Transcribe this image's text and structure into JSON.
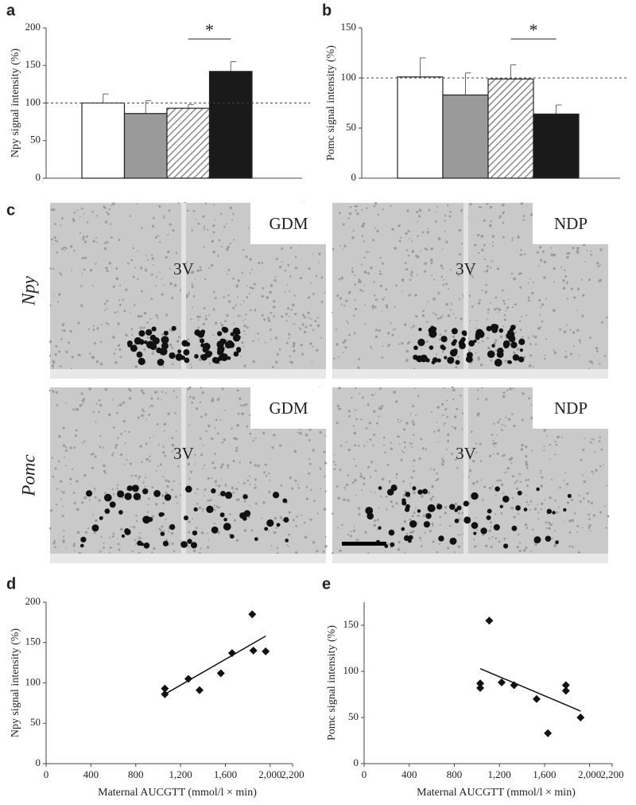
{
  "chart_data": [
    {
      "type": "bar",
      "panel_label": "a",
      "ylabel": "Npy signal intensity (%)",
      "categories": [
        null,
        null,
        null,
        null
      ],
      "values": [
        100,
        86,
        93,
        142
      ],
      "errors": [
        12,
        17,
        5,
        13
      ],
      "fills": [
        "#ffffff",
        "#9a9a9a",
        "#ffffff",
        "#1a1a1a"
      ],
      "hatched": [
        false,
        false,
        true,
        false
      ],
      "ylim": [
        0,
        200
      ],
      "yticks": [
        0,
        50,
        100,
        150,
        200
      ],
      "refline": 100,
      "significance": "*"
    },
    {
      "type": "bar",
      "panel_label": "b",
      "ylabel": "Pomc signal intensity (%)",
      "categories": [
        null,
        null,
        null,
        null
      ],
      "values": [
        101,
        83,
        99,
        64
      ],
      "errors": [
        19,
        22,
        14,
        9
      ],
      "fills": [
        "#ffffff",
        "#9a9a9a",
        "#ffffff",
        "#1a1a1a"
      ],
      "hatched": [
        false,
        false,
        true,
        false
      ],
      "ylim": [
        0,
        150
      ],
      "yticks": [
        0,
        50,
        100,
        150
      ],
      "refline": 100,
      "significance": "*"
    },
    {
      "type": "scatter",
      "panel_label": "d",
      "ylabel": "Npy signal intensity (%)",
      "xlabel": "Maternal AUCGTT (mmol/l × min)",
      "x": [
        1060,
        1060,
        1270,
        1370,
        1560,
        1660,
        1840,
        1850,
        1960
      ],
      "values": [
        93,
        86,
        105,
        91,
        112,
        137,
        185,
        140,
        139
      ],
      "color": "#111111",
      "trendline": {
        "x": [
          1060,
          1960
        ],
        "y": [
          86,
          158
        ]
      },
      "xlim": [
        0,
        2200
      ],
      "xticks": [
        0,
        400,
        800,
        {
          "value": 1200,
          "label": "1,200"
        },
        {
          "value": 1600,
          "label": "1,600"
        },
        {
          "value": 2000,
          "label": "2,000"
        },
        {
          "value": 2200,
          "label": "2,200"
        }
      ],
      "ylim": [
        0,
        200
      ],
      "yticks": [
        0,
        50,
        100,
        150,
        200
      ]
    },
    {
      "type": "scatter",
      "panel_label": "e",
      "ylabel": "Pomc signal intensity (%)",
      "xlabel": "Maternal AUCGTT (mmol/l × min)",
      "x": [
        1030,
        1030,
        1110,
        1220,
        1330,
        1530,
        1630,
        1790,
        1790,
        1920
      ],
      "values": [
        87,
        82,
        155,
        88,
        85,
        70,
        33,
        85,
        79,
        50
      ],
      "color": "#111111",
      "trendline": {
        "x": [
          1030,
          1920
        ],
        "y": [
          103,
          57
        ]
      },
      "xlim": [
        0,
        2200
      ],
      "xticks": [
        0,
        400,
        800,
        {
          "value": 1200,
          "label": "1,200"
        },
        {
          "value": 1600,
          "label": "1,600"
        },
        {
          "value": 2000,
          "label": "2,000"
        },
        {
          "value": 2200,
          "label": "2,200"
        }
      ],
      "ylim": [
        0,
        175
      ],
      "yticks": [
        0,
        50,
        100,
        150
      ]
    }
  ],
  "micrographs": {
    "panel_label": "c",
    "rows": [
      {
        "label": "Npy",
        "images": [
          {
            "group": "GDM",
            "landmark": "3V"
          },
          {
            "group": "NDP",
            "landmark": "3V"
          }
        ]
      },
      {
        "label": "Pomc",
        "images": [
          {
            "group": "GDM",
            "landmark": "3V"
          },
          {
            "group": "NDP",
            "landmark": "3V"
          }
        ]
      }
    ]
  }
}
